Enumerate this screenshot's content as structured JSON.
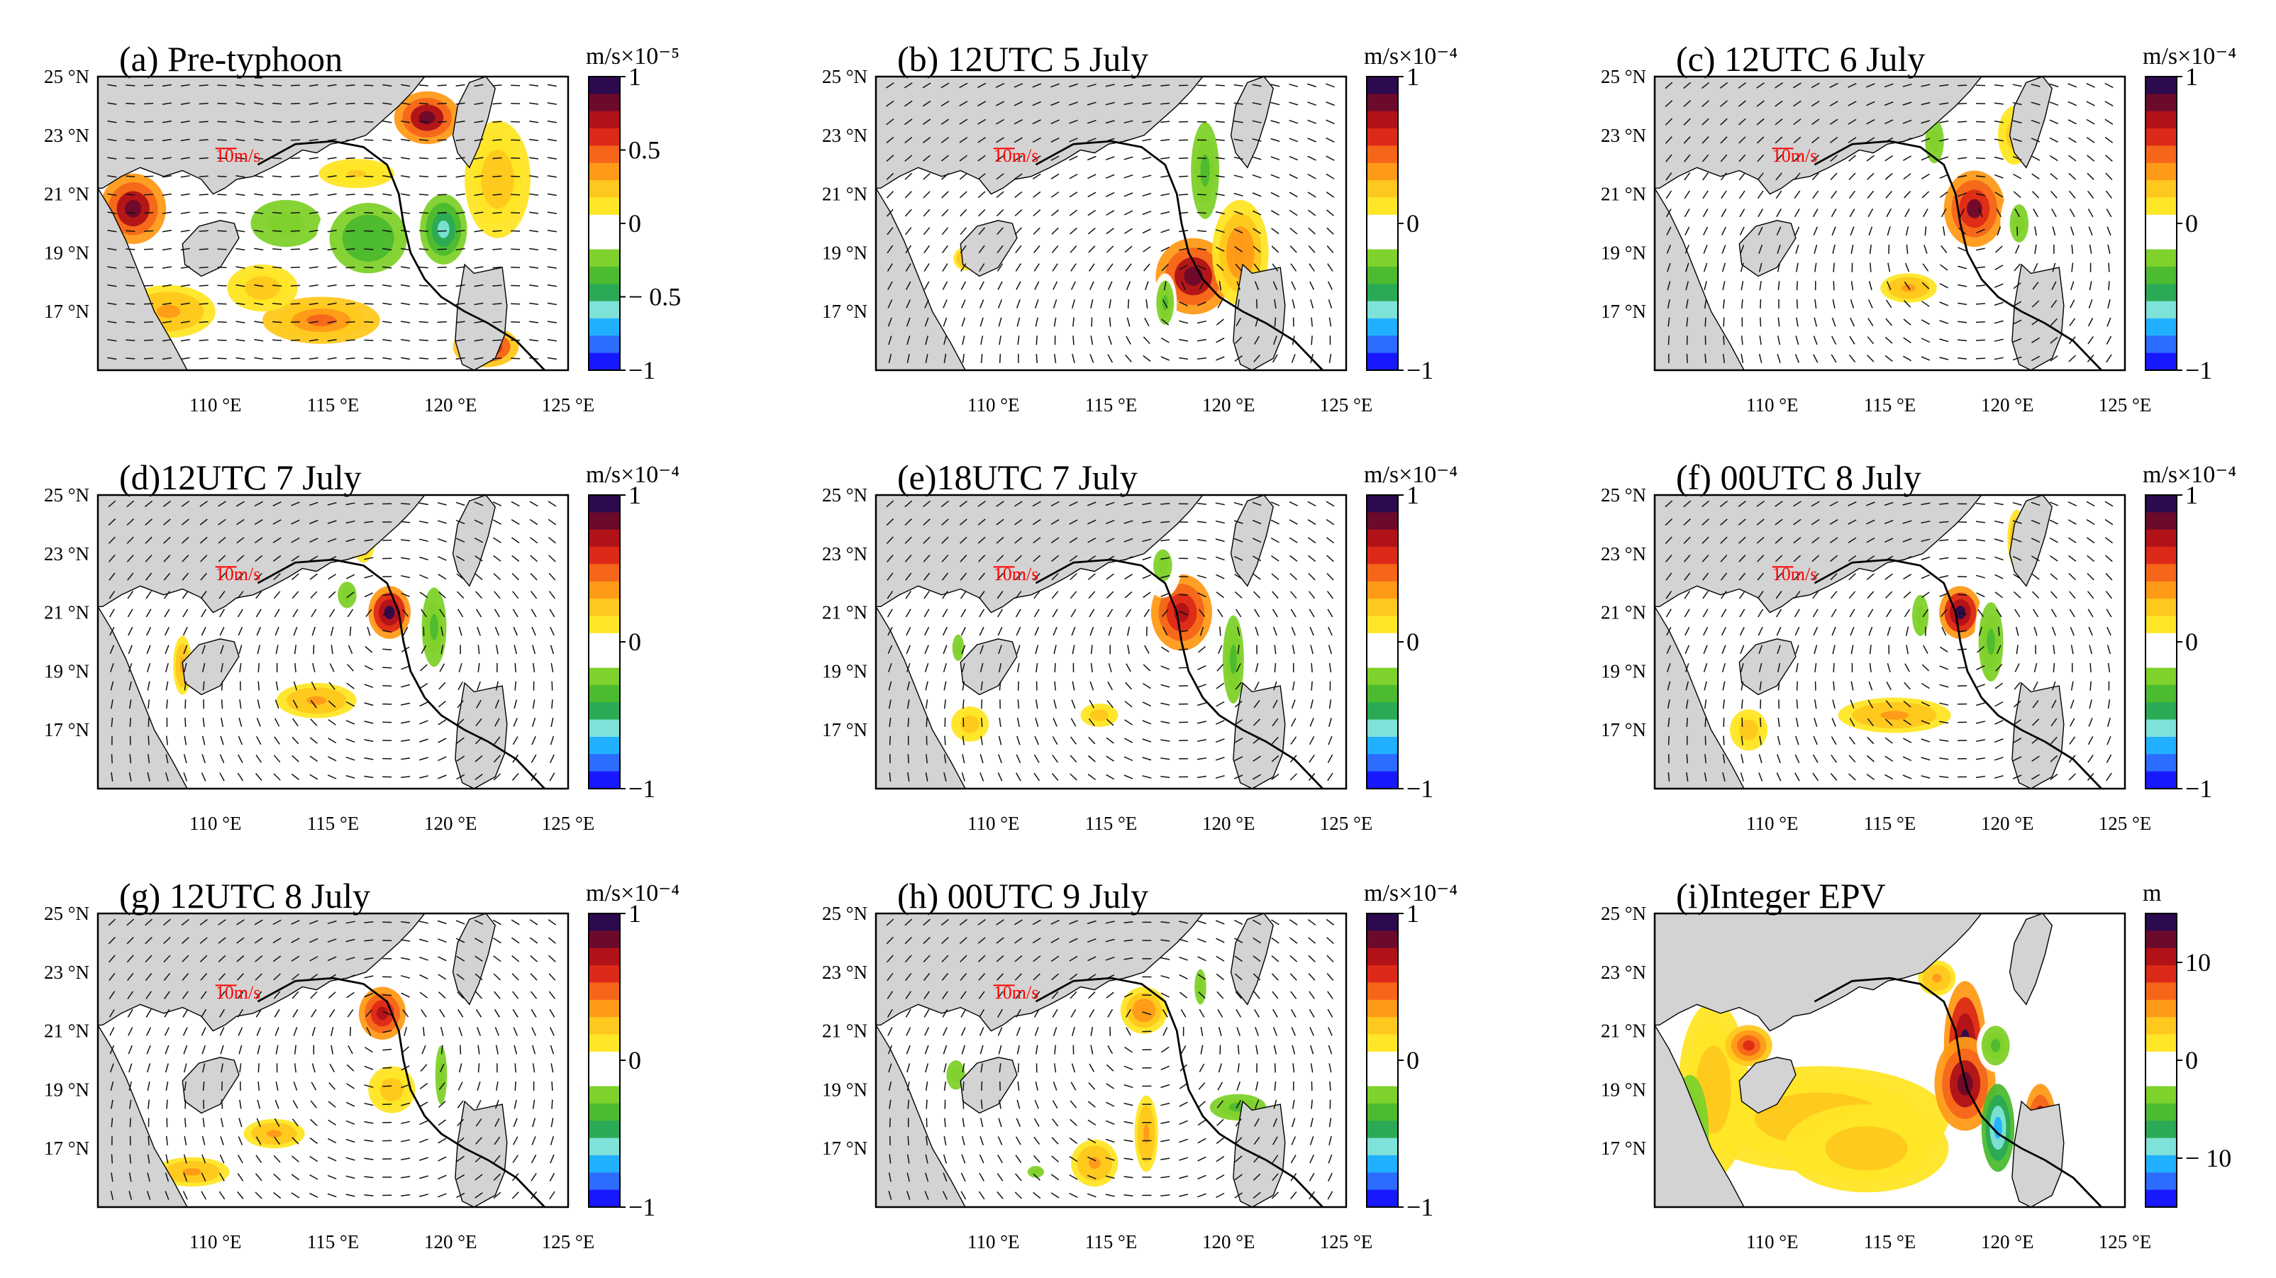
{
  "figure": {
    "lat_ticks": [
      "25 °N",
      "23 °N",
      "21 °N",
      "19 °N",
      "17 °N"
    ],
    "lon_ticks": [
      "110 °E",
      "115 °E",
      "120 °E",
      "125  °E"
    ],
    "speed_label": "10m/s",
    "colors": {
      "land": "#d3d3d3",
      "track": "#000000",
      "palette": [
        "#1818ff",
        "#2c6cff",
        "#20b0ff",
        "#7fe2d8",
        "#2aaa55",
        "#4cbb2f",
        "#7fd12b",
        "#ffffff",
        "#ffffff",
        "#ffe626",
        "#ffc81e",
        "#ff9a18",
        "#f5661a",
        "#dd2a18",
        "#b01218",
        "#6c0a2c",
        "#2c0a4e"
      ]
    }
  },
  "chart_data": [
    {
      "id": "a",
      "type": "heatmap",
      "title": "(a) Pre-typhoon",
      "unit": "m/s×10⁻⁵",
      "colorbar_ticks": [
        "1",
        "0.5",
        "0",
        "− 0.5",
        "−1"
      ],
      "colorbar_range": [
        -1,
        1
      ],
      "field": "stretching term with wind vectors",
      "lon_range": [
        105,
        125
      ],
      "lat_range": [
        15,
        25
      ],
      "vectors": true
    },
    {
      "id": "b",
      "type": "heatmap",
      "title": "(b) 12UTC 5 July",
      "unit": "m/s×10⁻⁴",
      "colorbar_ticks": [
        "1",
        "0",
        "−1"
      ],
      "colorbar_range": [
        -1,
        1
      ],
      "field": "stretching term with wind vectors",
      "lon_range": [
        105,
        125
      ],
      "lat_range": [
        15,
        25
      ],
      "vectors": true
    },
    {
      "id": "c",
      "type": "heatmap",
      "title": "(c) 12UTC 6 July",
      "unit": "m/s×10⁻⁴",
      "colorbar_ticks": [
        "1",
        "0",
        "−1"
      ],
      "colorbar_range": [
        -1,
        1
      ],
      "field": "stretching term with wind vectors",
      "lon_range": [
        105,
        125
      ],
      "lat_range": [
        15,
        25
      ],
      "vectors": true
    },
    {
      "id": "d",
      "type": "heatmap",
      "title": "(d)12UTC 7 July",
      "unit": "m/s×10⁻⁴",
      "colorbar_ticks": [
        "1",
        "0",
        "−1"
      ],
      "colorbar_range": [
        -1,
        1
      ],
      "field": "stretching term with wind vectors",
      "lon_range": [
        105,
        125
      ],
      "lat_range": [
        15,
        25
      ],
      "vectors": true
    },
    {
      "id": "e",
      "type": "heatmap",
      "title": "(e)18UTC 7 July",
      "unit": "m/s×10⁻⁴",
      "colorbar_ticks": [
        "1",
        "0",
        "−1"
      ],
      "colorbar_range": [
        -1,
        1
      ],
      "field": "stretching term with wind vectors",
      "lon_range": [
        105,
        125
      ],
      "lat_range": [
        15,
        25
      ],
      "vectors": true
    },
    {
      "id": "f",
      "type": "heatmap",
      "title": "(f) 00UTC 8 July",
      "unit": "m/s×10⁻⁴",
      "colorbar_ticks": [
        "1",
        "0",
        "−1"
      ],
      "colorbar_range": [
        -1,
        1
      ],
      "field": "stretching term with wind vectors",
      "lon_range": [
        105,
        125
      ],
      "lat_range": [
        15,
        25
      ],
      "vectors": true
    },
    {
      "id": "g",
      "type": "heatmap",
      "title": "(g) 12UTC 8 July",
      "unit": "m/s×10⁻⁴",
      "colorbar_ticks": [
        "1",
        "0",
        "−1"
      ],
      "colorbar_range": [
        -1,
        1
      ],
      "field": "stretching term with wind vectors",
      "lon_range": [
        105,
        125
      ],
      "lat_range": [
        15,
        25
      ],
      "vectors": true
    },
    {
      "id": "h",
      "type": "heatmap",
      "title": "(h) 00UTC 9 July",
      "unit": "m/s×10⁻⁴",
      "colorbar_ticks": [
        "1",
        "0",
        "−1"
      ],
      "colorbar_range": [
        -1,
        1
      ],
      "field": "stretching term with wind vectors",
      "lon_range": [
        105,
        125
      ],
      "lat_range": [
        15,
        25
      ],
      "vectors": true
    },
    {
      "id": "i",
      "type": "heatmap",
      "title": "(i)Integer EPV",
      "unit": "m",
      "colorbar_ticks": [
        "10",
        "0",
        "− 10"
      ],
      "colorbar_range": [
        -15,
        15
      ],
      "field": "integrated EPV",
      "lon_range": [
        105,
        125
      ],
      "lat_range": [
        15,
        25
      ],
      "vectors": false
    }
  ]
}
